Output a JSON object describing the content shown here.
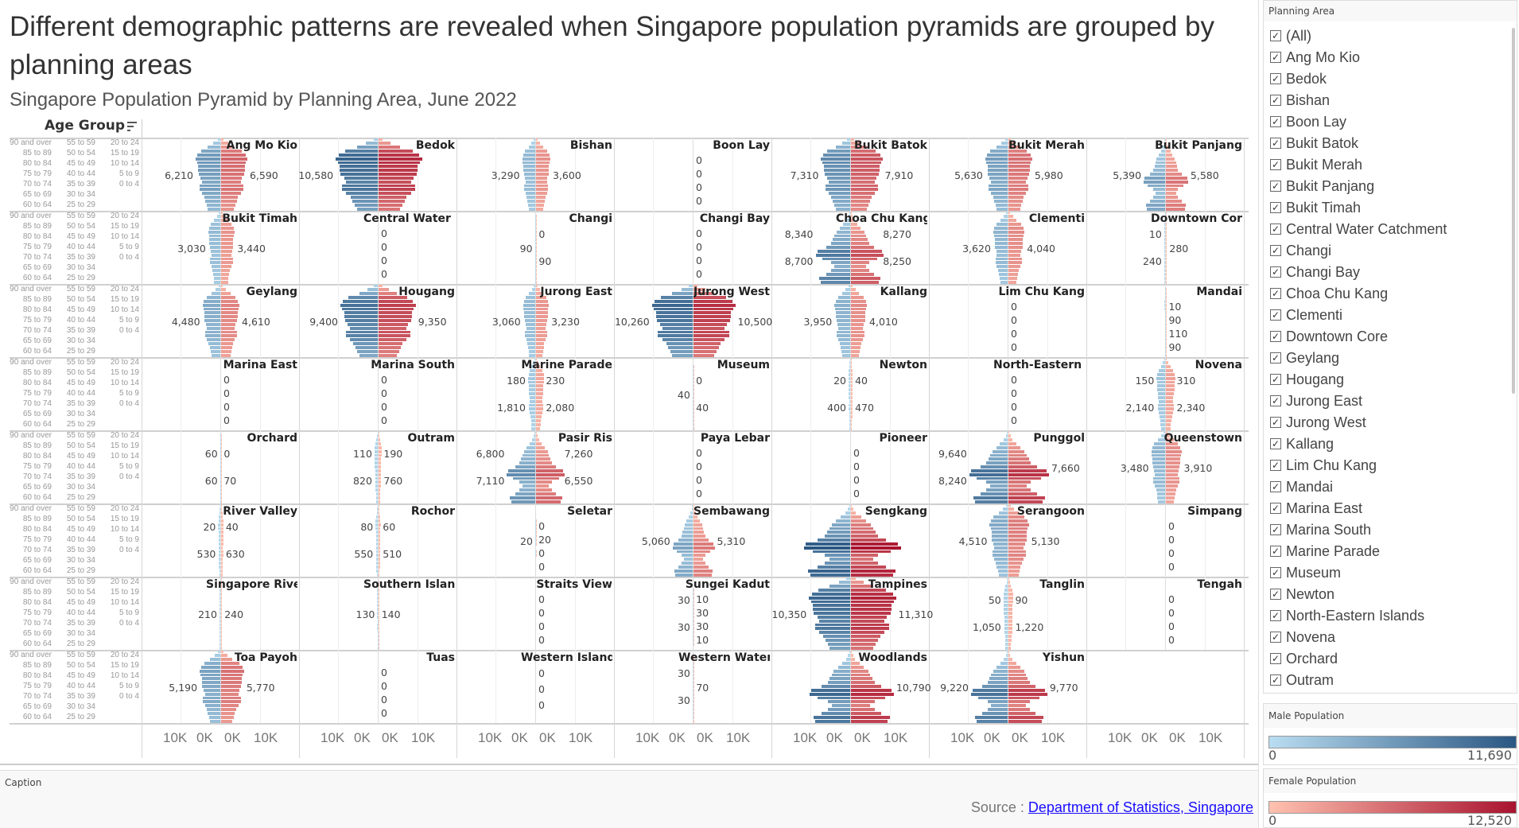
{
  "title": "Different demographic patterns are revealed when Singapore population pyramids are grouped by planning areas",
  "subtitle": "Singapore Population Pyramid by Planning Area, June 2022",
  "age_header": "Age Group",
  "axis_ticks": [
    "10K",
    "0K",
    "0K",
    "10K"
  ],
  "caption": {
    "label": "Caption",
    "source_prefix": "Source : ",
    "source_link": "Department of Statistics, Singapore"
  },
  "filter": {
    "title": "Planning Area",
    "items": [
      "(All)",
      "Ang Mo Kio",
      "Bedok",
      "Bishan",
      "Boon Lay",
      "Bukit Batok",
      "Bukit Merah",
      "Bukit Panjang",
      "Bukit Timah",
      "Central Water Catchment",
      "Changi",
      "Changi Bay",
      "Choa Chu Kang",
      "Clementi",
      "Downtown Core",
      "Geylang",
      "Hougang",
      "Jurong East",
      "Jurong West",
      "Kallang",
      "Lim Chu Kang",
      "Mandai",
      "Marina East",
      "Marina South",
      "Marine Parade",
      "Museum",
      "Newton",
      "North-Eastern Islands",
      "Novena",
      "Orchard",
      "Outram"
    ]
  },
  "legend_male": {
    "title": "Male Population",
    "min": "0",
    "max": "11,690",
    "colors": [
      "#b9ddf1",
      "#2a5783"
    ]
  },
  "legend_female": {
    "title": "Female Population",
    "min": "0",
    "max": "12,520",
    "colors": [
      "#ffc2b0",
      "#a9132f"
    ]
  },
  "chart_data": {
    "type": "bar",
    "title": "Singapore Population Pyramid by Planning Area, June 2022",
    "ylabel": "Age Group",
    "xlim": [
      -12520,
      12520
    ],
    "age_groups": [
      "0 to 4",
      "5 to 9",
      "10 to 14",
      "15 to 19",
      "20 to 24",
      "25 to 29",
      "30 to 34",
      "35 to 39",
      "40 to 44",
      "45 to 49",
      "50 to 54",
      "55 to 59",
      "60 to 64",
      "65 to 69",
      "70 to 74",
      "75 to 79",
      "80 to 84",
      "85 to 89",
      "90 and over"
    ],
    "profiles": {
      "mature": [
        0.5,
        0.55,
        0.6,
        0.65,
        0.75,
        0.85,
        0.85,
        0.75,
        0.8,
        0.88,
        0.9,
        0.9,
        0.95,
        1.0,
        0.93,
        0.78,
        0.5,
        0.28,
        0.1
      ],
      "young": [
        0.85,
        0.9,
        0.7,
        0.55,
        0.45,
        0.55,
        0.8,
        1.0,
        0.95,
        0.7,
        0.55,
        0.5,
        0.45,
        0.4,
        0.3,
        0.2,
        0.1,
        0.05,
        0.02
      ]
    },
    "areas": [
      {
        "name": "Ang Mo Kio",
        "peak": [
          6210,
          6590
        ],
        "profile": "mature",
        "male_labels": [
          "6,210"
        ],
        "female_labels": [
          "6,590"
        ]
      },
      {
        "name": "Bedok",
        "peak": [
          10580,
          10900
        ],
        "profile": "mature",
        "male_labels": [
          "10,580"
        ],
        "female_labels": []
      },
      {
        "name": "Bishan",
        "peak": [
          3290,
          3600
        ],
        "profile": "mature",
        "male_labels": [
          "3,290"
        ],
        "female_labels": [
          "3,600"
        ]
      },
      {
        "name": "Boon Lay",
        "peak": [
          0,
          0
        ],
        "profile": "mature",
        "male_labels": [],
        "female_labels": [
          "0",
          "0",
          "0",
          "0"
        ]
      },
      {
        "name": "Bukit Batok",
        "peak": [
          7310,
          7910
        ],
        "profile": "mature",
        "male_labels": [
          "7,310"
        ],
        "female_labels": [
          "7,910"
        ]
      },
      {
        "name": "Bukit Merah",
        "peak": [
          5630,
          5980
        ],
        "profile": "mature",
        "male_labels": [
          "5,630"
        ],
        "female_labels": [
          "5,980"
        ]
      },
      {
        "name": "Bukit Panjang",
        "peak": [
          5390,
          5580
        ],
        "profile": "young",
        "male_labels": [
          "5,390"
        ],
        "female_labels": [
          "5,580"
        ]
      },
      {
        "name": "Bukit Timah",
        "peak": [
          3030,
          3440
        ],
        "profile": "mature",
        "male_labels": [
          "3,030"
        ],
        "female_labels": [
          "3,440"
        ]
      },
      {
        "name": "Central Water Catchment",
        "peak": [
          0,
          0
        ],
        "profile": "mature",
        "male_labels": [],
        "female_labels": [
          "0",
          "0",
          "0",
          "0"
        ]
      },
      {
        "name": "Changi",
        "peak": [
          90,
          90
        ],
        "profile": "mature",
        "male_labels": [
          "90"
        ],
        "female_labels": [
          "0",
          "90"
        ]
      },
      {
        "name": "Changi Bay",
        "peak": [
          0,
          0
        ],
        "profile": "mature",
        "male_labels": [],
        "female_labels": [
          "0",
          "0",
          "0",
          "0"
        ]
      },
      {
        "name": "Choa Chu Kang",
        "peak": [
          8700,
          8270
        ],
        "profile": "young",
        "male_labels": [
          "8,340",
          "8,700"
        ],
        "female_labels": [
          "8,270",
          "8,250"
        ]
      },
      {
        "name": "Clementi",
        "peak": [
          3620,
          4040
        ],
        "profile": "mature",
        "male_labels": [
          "3,620"
        ],
        "female_labels": [
          "4,040"
        ]
      },
      {
        "name": "Downtown Core",
        "peak": [
          240,
          280
        ],
        "profile": "mature",
        "male_labels": [
          "10",
          "240"
        ],
        "female_labels": [
          "280"
        ]
      },
      {
        "name": "Geylang",
        "peak": [
          4480,
          4610
        ],
        "profile": "mature",
        "male_labels": [
          "4,480"
        ],
        "female_labels": [
          "4,610"
        ]
      },
      {
        "name": "Hougang",
        "peak": [
          9400,
          9350
        ],
        "profile": "mature",
        "male_labels": [
          "9,400"
        ],
        "female_labels": [
          "9,350"
        ]
      },
      {
        "name": "Jurong East",
        "peak": [
          3060,
          3230
        ],
        "profile": "mature",
        "male_labels": [
          "3,060"
        ],
        "female_labels": [
          "3,230"
        ]
      },
      {
        "name": "Jurong West",
        "peak": [
          10260,
          10500
        ],
        "profile": "mature",
        "male_labels": [
          "10,260"
        ],
        "female_labels": [
          "10,500"
        ]
      },
      {
        "name": "Kallang",
        "peak": [
          3950,
          4010
        ],
        "profile": "mature",
        "male_labels": [
          "3,950"
        ],
        "female_labels": [
          "4,010"
        ]
      },
      {
        "name": "Lim Chu Kang",
        "peak": [
          0,
          0
        ],
        "profile": "mature",
        "male_labels": [],
        "female_labels": [
          "0",
          "0",
          "0",
          "0"
        ]
      },
      {
        "name": "Mandai",
        "peak": [
          110,
          110
        ],
        "profile": "mature",
        "male_labels": [],
        "female_labels": [
          "10",
          "90",
          "110",
          "90"
        ]
      },
      {
        "name": "Marina East",
        "peak": [
          0,
          0
        ],
        "profile": "mature",
        "male_labels": [],
        "female_labels": [
          "0",
          "0",
          "0",
          "0"
        ]
      },
      {
        "name": "Marina South",
        "peak": [
          0,
          0
        ],
        "profile": "mature",
        "male_labels": [],
        "female_labels": [
          "0",
          "0",
          "0",
          "0"
        ]
      },
      {
        "name": "Marine Parade",
        "peak": [
          1810,
          2080
        ],
        "profile": "mature",
        "male_labels": [
          "180",
          "1,810"
        ],
        "female_labels": [
          "230",
          "2,080"
        ]
      },
      {
        "name": "Museum",
        "peak": [
          40,
          40
        ],
        "profile": "mature",
        "male_labels": [
          "40"
        ],
        "female_labels": [
          "0",
          "40"
        ]
      },
      {
        "name": "Newton",
        "peak": [
          400,
          470
        ],
        "profile": "mature",
        "male_labels": [
          "20",
          "400"
        ],
        "female_labels": [
          "40",
          "470"
        ]
      },
      {
        "name": "North-Eastern Islands",
        "peak": [
          0,
          0
        ],
        "profile": "mature",
        "male_labels": [],
        "female_labels": [
          "0",
          "0",
          "0",
          "0"
        ]
      },
      {
        "name": "Novena",
        "peak": [
          2140,
          2340
        ],
        "profile": "mature",
        "male_labels": [
          "150",
          "2,140"
        ],
        "female_labels": [
          "310",
          "2,340"
        ]
      },
      {
        "name": "Orchard",
        "peak": [
          60,
          70
        ],
        "profile": "mature",
        "male_labels": [
          "60",
          "60"
        ],
        "female_labels": [
          "0",
          "70"
        ]
      },
      {
        "name": "Outram",
        "peak": [
          820,
          760
        ],
        "profile": "mature",
        "male_labels": [
          "110",
          "820"
        ],
        "female_labels": [
          "190",
          "760"
        ]
      },
      {
        "name": "Pasir Ris",
        "peak": [
          7110,
          7260
        ],
        "profile": "young",
        "male_labels": [
          "6,800",
          "7,110"
        ],
        "female_labels": [
          "7,260",
          "6,550"
        ]
      },
      {
        "name": "Paya Lebar",
        "peak": [
          0,
          0
        ],
        "profile": "mature",
        "male_labels": [],
        "female_labels": [
          "0",
          "0",
          "0",
          "0"
        ]
      },
      {
        "name": "Pioneer",
        "peak": [
          0,
          0
        ],
        "profile": "mature",
        "male_labels": [],
        "female_labels": [
          "0",
          "0",
          "0",
          "0"
        ]
      },
      {
        "name": "Punggol",
        "peak": [
          9640,
          10200
        ],
        "profile": "young",
        "male_labels": [
          "9,640",
          "8,240"
        ],
        "female_labels": [
          "7,660"
        ]
      },
      {
        "name": "Queenstown",
        "peak": [
          3480,
          3910
        ],
        "profile": "mature",
        "male_labels": [
          "3,480"
        ],
        "female_labels": [
          "3,910"
        ]
      },
      {
        "name": "River Valley",
        "peak": [
          530,
          630
        ],
        "profile": "mature",
        "male_labels": [
          "20",
          "530"
        ],
        "female_labels": [
          "40",
          "630"
        ]
      },
      {
        "name": "Rochor",
        "peak": [
          550,
          510
        ],
        "profile": "mature",
        "male_labels": [
          "80",
          "550"
        ],
        "female_labels": [
          "60",
          "510"
        ]
      },
      {
        "name": "Seletar",
        "peak": [
          20,
          20
        ],
        "profile": "mature",
        "male_labels": [
          "20"
        ],
        "female_labels": [
          "0",
          "20",
          "0",
          "0"
        ]
      },
      {
        "name": "Sembawang",
        "peak": [
          5060,
          5310
        ],
        "profile": "young",
        "male_labels": [
          "5,060"
        ],
        "female_labels": [
          "5,310"
        ]
      },
      {
        "name": "Sengkang",
        "peak": [
          11690,
          12520
        ],
        "profile": "young",
        "male_labels": [],
        "female_labels": []
      },
      {
        "name": "Serangoon",
        "peak": [
          4510,
          5130
        ],
        "profile": "mature",
        "male_labels": [
          "4,510"
        ],
        "female_labels": [
          "5,130"
        ]
      },
      {
        "name": "Simpang",
        "peak": [
          0,
          0
        ],
        "profile": "mature",
        "male_labels": [],
        "female_labels": [
          "0",
          "0",
          "0",
          "0"
        ]
      },
      {
        "name": "Singapore River",
        "peak": [
          210,
          240
        ],
        "profile": "mature",
        "male_labels": [
          "210"
        ],
        "female_labels": [
          "240"
        ]
      },
      {
        "name": "Southern Islands",
        "peak": [
          130,
          140
        ],
        "profile": "mature",
        "male_labels": [
          "130"
        ],
        "female_labels": [
          "140"
        ]
      },
      {
        "name": "Straits View",
        "peak": [
          0,
          0
        ],
        "profile": "mature",
        "male_labels": [],
        "female_labels": [
          "0",
          "0",
          "0",
          "0"
        ]
      },
      {
        "name": "Sungei Kadut",
        "peak": [
          30,
          30
        ],
        "profile": "mature",
        "male_labels": [
          "30",
          "30"
        ],
        "female_labels": [
          "10",
          "30",
          "30",
          "10"
        ]
      },
      {
        "name": "Tampines",
        "peak": [
          10350,
          11310
        ],
        "profile": "mature",
        "male_labels": [
          "10,350"
        ],
        "female_labels": [
          "11,310"
        ]
      },
      {
        "name": "Tanglin",
        "peak": [
          1050,
          1220
        ],
        "profile": "mature",
        "male_labels": [
          "50",
          "1,050"
        ],
        "female_labels": [
          "90",
          "1,220"
        ]
      },
      {
        "name": "Tengah",
        "peak": [
          0,
          0
        ],
        "profile": "mature",
        "male_labels": [],
        "female_labels": [
          "0",
          "0",
          "0",
          "0"
        ]
      },
      {
        "name": "Toa Payoh",
        "peak": [
          5190,
          5770
        ],
        "profile": "mature",
        "male_labels": [
          "5,190"
        ],
        "female_labels": [
          "5,770"
        ]
      },
      {
        "name": "Tuas",
        "peak": [
          0,
          0
        ],
        "profile": "mature",
        "male_labels": [],
        "female_labels": [
          "0",
          "0",
          "0",
          "0"
        ]
      },
      {
        "name": "Western Islands",
        "peak": [
          0,
          0
        ],
        "profile": "mature",
        "male_labels": [],
        "female_labels": [
          "0",
          "0",
          "0"
        ]
      },
      {
        "name": "Western Water Catchment",
        "peak": [
          30,
          70
        ],
        "profile": "mature",
        "male_labels": [
          "30",
          "30"
        ],
        "female_labels": [
          "70"
        ]
      },
      {
        "name": "Woodlands",
        "peak": [
          10300,
          10790
        ],
        "profile": "young",
        "male_labels": [],
        "female_labels": [
          "10,790"
        ]
      },
      {
        "name": "Yishun",
        "peak": [
          9220,
          9770
        ],
        "profile": "young",
        "male_labels": [
          "9,220"
        ],
        "female_labels": [
          "9,770"
        ]
      }
    ]
  }
}
